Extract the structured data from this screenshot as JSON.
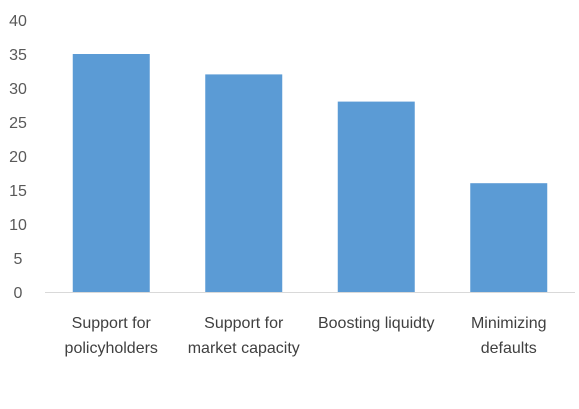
{
  "chart_data": {
    "type": "bar",
    "title": "",
    "xlabel": "",
    "ylabel": "",
    "categories": [
      [
        "Support for",
        "policyholders"
      ],
      [
        "Support for",
        "market capacity"
      ],
      [
        "Boosting liquidty"
      ],
      [
        "Minimizing",
        "defaults"
      ]
    ],
    "values": [
      35,
      32,
      28,
      16
    ],
    "ylim": [
      0,
      40
    ],
    "yticks": [
      "0",
      "5",
      "10",
      "15",
      "20",
      "25",
      "30",
      "35",
      "40"
    ],
    "grid": false,
    "legend": "none",
    "colors": {
      "bar": "#5b9bd5",
      "axis": "#d9d9d9",
      "tick_text": "#595959",
      "category_text": "#404040"
    }
  }
}
